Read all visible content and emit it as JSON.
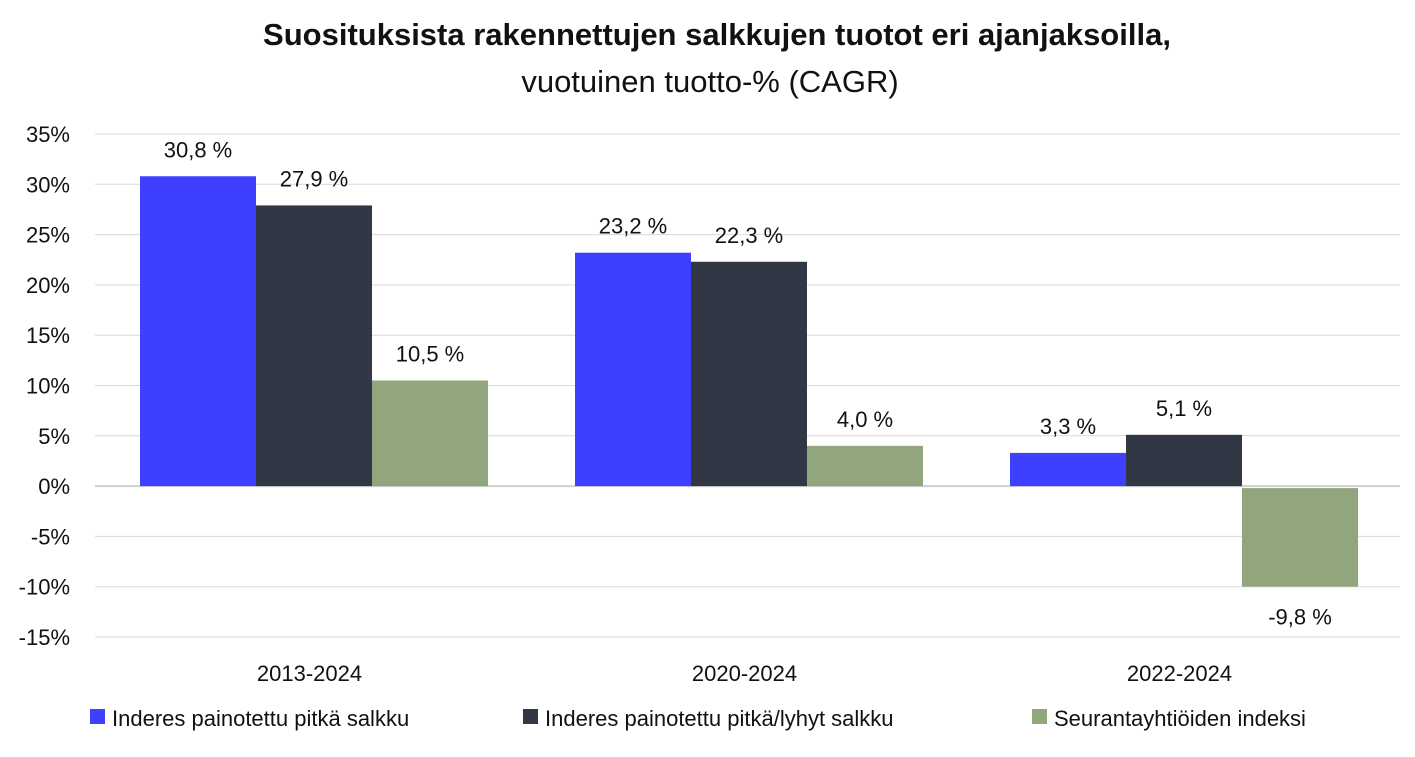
{
  "chart_data": {
    "type": "bar",
    "title": "Suosituksista rakennettujen salkkujen tuotot eri ajanjaksoilla,",
    "subtitle": "vuotuinen tuotto-% (CAGR)",
    "categories": [
      "2013-2024",
      "2020-2024",
      "2022-2024"
    ],
    "series": [
      {
        "name": "Inderes painotettu pitkä salkku",
        "color": "#3f3fff",
        "values": [
          30.8,
          23.2,
          3.3
        ],
        "labels": [
          "30,8 %",
          "23,2 %",
          "3,3 %"
        ]
      },
      {
        "name": "Inderes painotettu pitkä/lyhyt salkku",
        "color": "#313745",
        "values": [
          27.9,
          22.3,
          5.1
        ],
        "labels": [
          "27,9 %",
          "22,3 %",
          "5,1 %"
        ]
      },
      {
        "name": "Seurantayhtiöiden indeksi",
        "color": "#92a67e",
        "values": [
          10.5,
          4.0,
          -9.8
        ],
        "labels": [
          "10,5 %",
          "4,0 %",
          "-9,8 %"
        ]
      }
    ],
    "ylim": [
      -15,
      35
    ],
    "yticks": [
      35,
      30,
      25,
      20,
      15,
      10,
      5,
      0,
      -5,
      -10,
      -15
    ],
    "ytick_labels": [
      "35%",
      "30%",
      "25%",
      "20%",
      "15%",
      "10%",
      "5%",
      "0%",
      "-5%",
      "-10%",
      "-15%"
    ],
    "grid": true,
    "legend": "bottom",
    "xlabel": "",
    "ylabel": ""
  }
}
